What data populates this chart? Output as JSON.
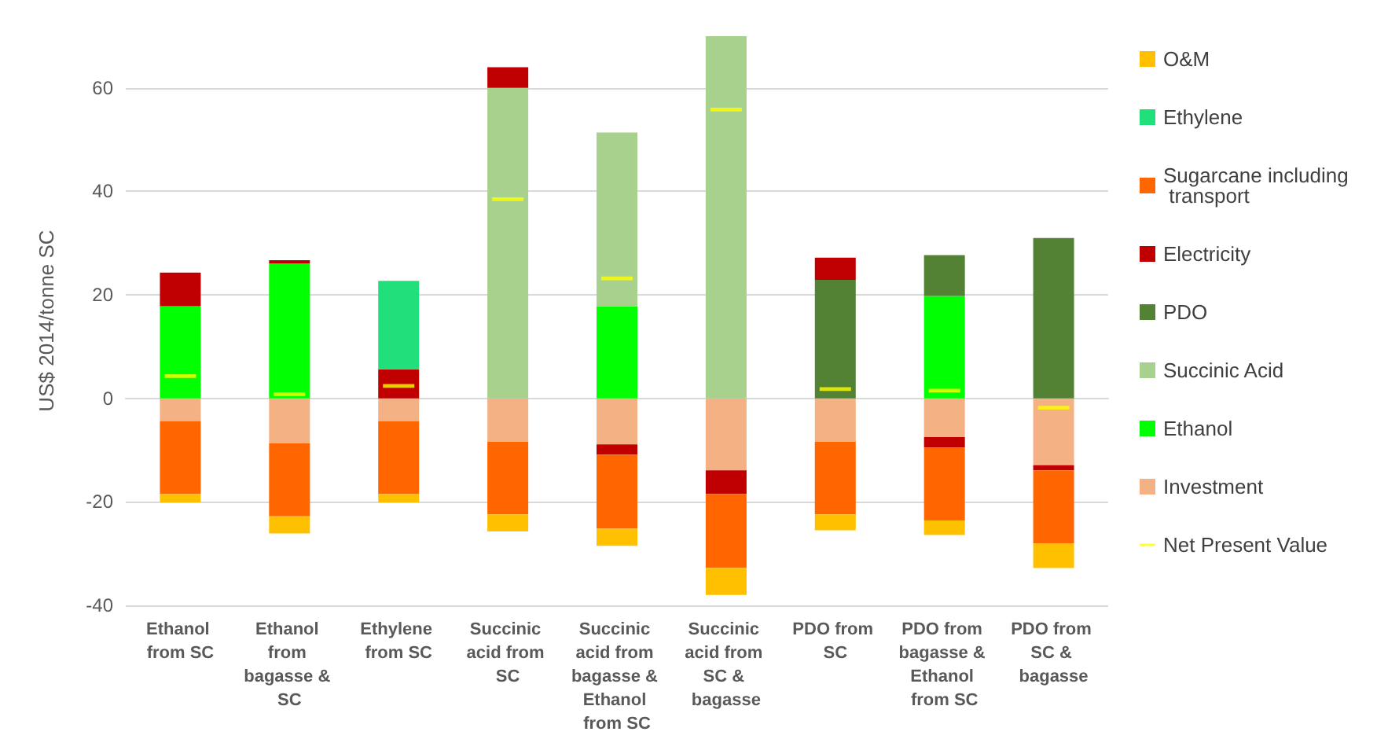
{
  "chart_data": {
    "type": "bar",
    "stacked": true,
    "ylabel": "US$ 2014/tonne SC",
    "categories": [
      "Ethanol from SC",
      "Ethanol from bagasse & SC",
      "Ethylene from SC",
      "Succinic acid from SC",
      "Succinic acid from bagasse & Ethanol from SC",
      "Succinic acid from SC & bagasse",
      "PDO from SC",
      "PDO from bagasse & Ethanol from SC",
      "PDO from SC & bagasse"
    ],
    "series": [
      {
        "name": "Investment",
        "color": "#f4b183",
        "values": [
          -4.4,
          -8.7,
          -4.4,
          -8.4,
          -8.9,
          -13.9,
          -8.4,
          -7.5,
          -12.9
        ]
      },
      {
        "name": "Ethanol",
        "color": "#00ff00",
        "values": [
          17.8,
          26.1,
          null,
          null,
          17.8,
          null,
          null,
          19.8,
          null
        ]
      },
      {
        "name": "Succinic Acid",
        "color": "#a9d18e",
        "values": [
          null,
          null,
          null,
          60,
          33.6,
          70,
          null,
          null,
          null
        ]
      },
      {
        "name": "PDO",
        "color": "#548235",
        "values": [
          null,
          null,
          null,
          null,
          null,
          null,
          22.9,
          7.9,
          31
        ]
      },
      {
        "name": "Electricity",
        "color": "#c00000",
        "values": [
          6.5,
          0.6,
          5.6,
          4.0,
          -2.0,
          -4.6,
          4.3,
          -2.0,
          -1.0
        ]
      },
      {
        "name": "Sugarcane including transport",
        "color": "#ff6600",
        "values": [
          -14.1,
          -14.1,
          -14.1,
          -14.0,
          -14.3,
          -14.3,
          -14.0,
          -14.1,
          -14.1
        ]
      },
      {
        "name": "Ethylene",
        "color": "#21df7a",
        "values": [
          null,
          null,
          17.1,
          null,
          null,
          null,
          null,
          null,
          null
        ]
      },
      {
        "name": "O&M",
        "color": "#ffc000",
        "values": [
          -1.6,
          -3.3,
          -1.6,
          -3.3,
          -3.3,
          -5.2,
          -3.1,
          -2.8,
          -4.8
        ]
      },
      {
        "name": "Net Present Value",
        "type": "scatter",
        "color": "#ffff00",
        "x": [
          "Ethanol from SC",
          "Ethanol from bagasse & SC",
          "Ethylene from SC",
          "Succinic acid from SC",
          "Succinic acid from bagasse & Ethanol from SC",
          "Succinic acid from SC & bagasse",
          "PDO from SC",
          "PDO from bagasse & Ethanol from SC",
          "PDO from SC & bagasse"
        ],
        "values": [
          4.3,
          0.8,
          2.4,
          38.5,
          23.2,
          55.8,
          1.8,
          1.5,
          -1.8
        ]
      }
    ],
    "ylim": [
      -40,
      70
    ],
    "yticks": [
      -40,
      -20,
      0,
      20,
      40,
      60
    ],
    "grid": "y",
    "legend": "right"
  }
}
